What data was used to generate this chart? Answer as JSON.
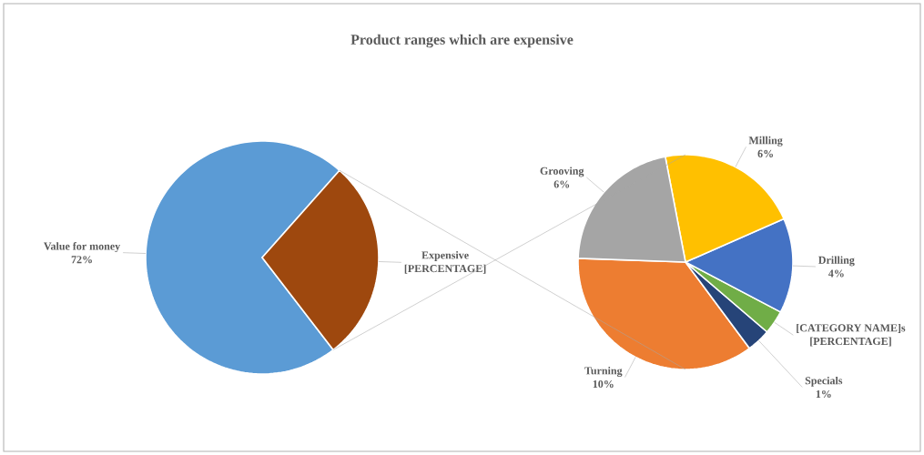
{
  "chart_data": [
    {
      "type": "pie",
      "title": "Product  ranges which  are expensive",
      "categories": [
        "Value for money",
        "Expensive"
      ],
      "values": [
        72,
        28
      ],
      "colors": [
        "#5b9bd5",
        "#9e480e"
      ],
      "value_labels": [
        "72%",
        "[PERCENTAGE]"
      ]
    },
    {
      "type": "pie",
      "categories": [
        "Turning",
        "Specials",
        "[CATEGORY NAME]s",
        "Drilling",
        "Milling",
        "Grooving"
      ],
      "values": [
        10,
        1,
        1,
        4,
        6,
        6
      ],
      "colors": [
        "#ed7d31",
        "#264478",
        "#70ad47",
        "#4472c4",
        "#ffc000",
        "#a5a5a5"
      ],
      "value_labels": [
        "10%",
        "1%",
        "[PERCENTAGE]",
        "4%",
        "6%",
        "6%"
      ]
    }
  ]
}
